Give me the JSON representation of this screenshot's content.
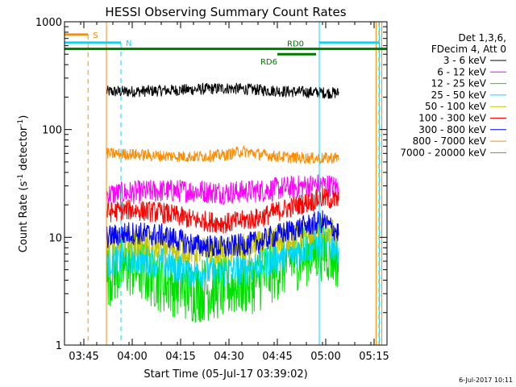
{
  "chart_data": {
    "type": "line",
    "title": "HESSI Observing Summary Count Rates",
    "xlabel": "Start Time (05-Jul-17 03:39:02)",
    "ylabel_parts": [
      "Count Rate (s",
      "-1",
      " detector",
      "-1",
      ")"
    ],
    "x_unit": "minutes after 03:39:02",
    "xlim": [
      0,
      100
    ],
    "ylim": [
      1,
      1000
    ],
    "yscale": "log",
    "x_ticks": [
      {
        "label": "03:45",
        "x": 6
      },
      {
        "label": "04:00",
        "x": 21
      },
      {
        "label": "04:15",
        "x": 36
      },
      {
        "label": "04:30",
        "x": 51
      },
      {
        "label": "04:45",
        "x": 66
      },
      {
        "label": "05:00",
        "x": 81
      },
      {
        "label": "05:15",
        "x": 96
      }
    ],
    "y_ticks": [
      {
        "label": "1",
        "y": 1
      },
      {
        "label": "10",
        "y": 10
      },
      {
        "label": "100",
        "y": 100
      },
      {
        "label": "1000",
        "y": 1000
      }
    ],
    "legend": {
      "position": "right",
      "header": [
        "Det 1,3,6,",
        "FDecim 4, Att 0"
      ],
      "entries": [
        {
          "label": "3 - 6 keV",
          "color": "#000000"
        },
        {
          "label": "6 - 12 keV",
          "color": "#ff00ff"
        },
        {
          "label": "12 - 25 keV",
          "color": "#00e000"
        },
        {
          "label": "25 - 50 keV",
          "color": "#00d8ff"
        },
        {
          "label": "50 - 100 keV",
          "color": "#c8c800"
        },
        {
          "label": "100 - 300 keV",
          "color": "#ff0000"
        },
        {
          "label": "300 - 800 keV",
          "color": "#0000ff"
        },
        {
          "label": "800 - 7000 keV",
          "color": "#ff8c00"
        },
        {
          "label": "7000 - 20000 keV",
          "color": "#d86400"
        }
      ]
    },
    "series": [
      {
        "name": "3 - 6 keV",
        "color": "#000000",
        "noise": 0.025,
        "x": [
          13,
          20,
          30,
          40,
          50,
          55,
          62,
          70,
          80,
          85
        ],
        "y": [
          225,
          225,
          230,
          235,
          242,
          238,
          232,
          225,
          220,
          218
        ]
      },
      {
        "name": "6 - 12 keV",
        "color": "#ff00ff",
        "noise": 0.05,
        "x": [
          13,
          20,
          30,
          40,
          50,
          60,
          70,
          80,
          85
        ],
        "y": [
          25,
          26,
          27,
          27,
          26,
          27,
          29,
          31,
          29
        ]
      },
      {
        "name": "12 - 25 keV",
        "color": "#00e000",
        "noise": 0.14,
        "x": [
          13,
          20,
          30,
          40,
          50,
          60,
          70,
          80,
          85
        ],
        "y": [
          4.5,
          5.5,
          4,
          3.2,
          3.5,
          4,
          6,
          8,
          6.5
        ]
      },
      {
        "name": "25 - 50 keV",
        "color": "#00d8ff",
        "noise": 0.07,
        "x": [
          13,
          20,
          30,
          40,
          50,
          60,
          70,
          80,
          85
        ],
        "y": [
          6,
          6.5,
          5.8,
          4.8,
          4.8,
          5.5,
          7,
          9,
          8
        ]
      },
      {
        "name": "50 - 100 keV",
        "color": "#c8c800",
        "noise": 0.06,
        "x": [
          13,
          20,
          30,
          40,
          50,
          60,
          70,
          80,
          85
        ],
        "y": [
          8.5,
          9,
          8.5,
          7.5,
          7.5,
          8.5,
          10,
          12,
          10.5
        ]
      },
      {
        "name": "100 - 300 keV",
        "color": "#ff0000",
        "noise": 0.045,
        "x": [
          13,
          20,
          30,
          40,
          50,
          60,
          70,
          80,
          85
        ],
        "y": [
          17,
          18,
          17,
          14.5,
          13.5,
          15,
          19,
          23,
          22
        ]
      },
      {
        "name": "300 - 800 keV",
        "color": "#0000ff",
        "noise": 0.05,
        "x": [
          13,
          20,
          30,
          40,
          50,
          60,
          70,
          80,
          85
        ],
        "y": [
          10,
          11,
          10.5,
          8.5,
          8,
          9,
          11.5,
          14,
          11
        ]
      },
      {
        "name": "800 - 7000 keV",
        "color": "#ff8c00",
        "noise": 0.025,
        "x": [
          13,
          20,
          30,
          40,
          50,
          55,
          62,
          70,
          80,
          85
        ],
        "y": [
          60,
          59,
          57,
          56,
          58,
          63,
          58,
          55,
          54,
          55
        ]
      }
    ],
    "markers": [
      {
        "label": "S",
        "color": "#ff8c00",
        "x_line": 7.3,
        "y": 760,
        "x_start": 0,
        "x_end": 7.3
      },
      {
        "label": "N",
        "color": "#00d8ff",
        "x_line": 17.5,
        "y": 640,
        "x_start": 0,
        "x_end": 17.5
      },
      {
        "label": "RD0",
        "color": "#007800",
        "y": 560,
        "x_start": 0,
        "x_end": 100
      },
      {
        "label": "RD6",
        "color": "#007800",
        "y": 500,
        "x_start": 66,
        "x_end": 78
      }
    ],
    "cyan_after": {
      "x_start": 79,
      "x_end": 97.6,
      "y": 640
    },
    "vlines": [
      {
        "x": 13,
        "color": "#ff8c00",
        "style": "solid"
      },
      {
        "x": 79,
        "color": "#00d8ff",
        "style": "solid"
      },
      {
        "x": 97.6,
        "color": "#00d8ff",
        "style": "solid"
      },
      {
        "x": 96.6,
        "color": "#ff8c00",
        "style": "solid"
      },
      {
        "x": 97.5,
        "color": "#ff8c00",
        "style": "dashed"
      },
      {
        "x": 98.4,
        "color": "#ff8c00",
        "style": "solid"
      }
    ]
  },
  "footer": {
    "date_stamp": "6-Jul-2017 10:11"
  }
}
